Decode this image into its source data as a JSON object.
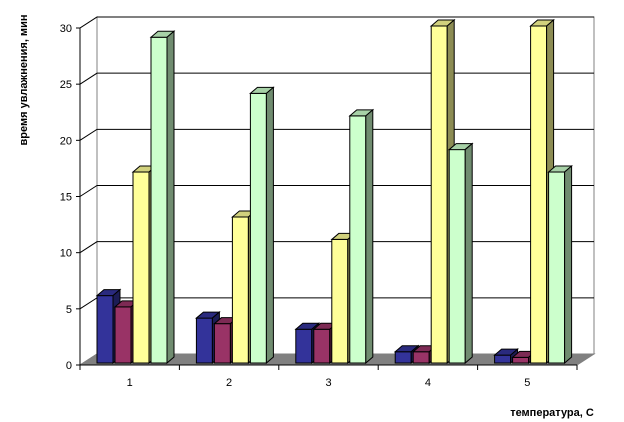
{
  "chart_data": {
    "type": "bar",
    "title": "",
    "xlabel": "температура,  С",
    "ylabel": "время увлажнения, мин",
    "categories": [
      "1",
      "2",
      "3",
      "4",
      "5"
    ],
    "ylim": [
      0,
      30
    ],
    "yticks": [
      0,
      5,
      10,
      15,
      20,
      25,
      30
    ],
    "grid": true,
    "legend": "none",
    "series": [
      {
        "color": "#33339a",
        "values": [
          6,
          4,
          3,
          1,
          0.7
        ]
      },
      {
        "color": "#993366",
        "values": [
          5,
          3.5,
          3,
          1,
          0.5
        ]
      },
      {
        "color": "#ffff99",
        "values": [
          17,
          13,
          11,
          30,
          30
        ]
      },
      {
        "color": "#ccffcc",
        "values": [
          29,
          24,
          22,
          19,
          17
        ]
      }
    ]
  }
}
